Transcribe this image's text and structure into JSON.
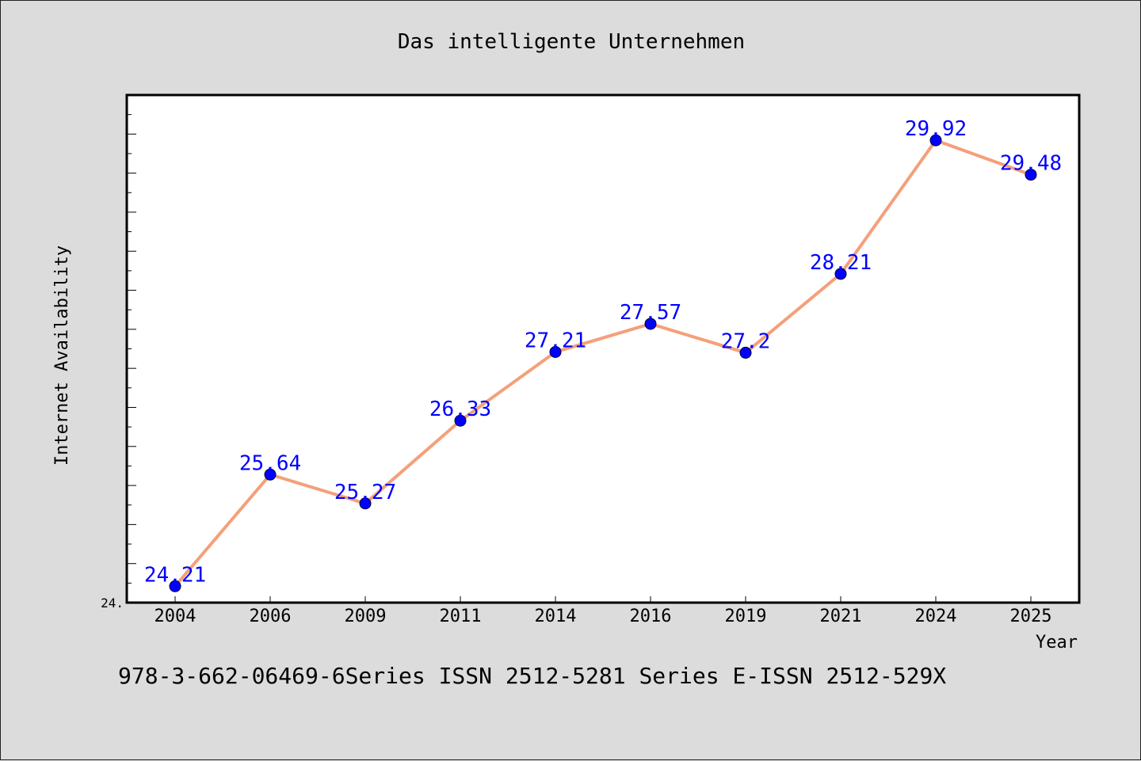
{
  "chart_data": {
    "type": "line",
    "title": "Das intelligente Unternehmen",
    "xlabel": "Year",
    "ylabel": "Internet Availability",
    "categories": [
      "2004",
      "2006",
      "2009",
      "2011",
      "2014",
      "2016",
      "2019",
      "2021",
      "2024",
      "2025"
    ],
    "series": [
      {
        "values": [
          24.21,
          25.64,
          25.27,
          26.33,
          27.21,
          27.57,
          27.2,
          28.21,
          29.92,
          29.48
        ],
        "data_labels": [
          "24.21",
          "25.64",
          "25.27",
          "26.33",
          "27.21",
          "27.57",
          "27.2",
          "28.21",
          "29.92",
          "29.48"
        ]
      }
    ],
    "ylim": [
      24.0,
      30.5
    ],
    "y_tick_label_shown": "24.",
    "grid": false,
    "line_color": "#f4a07a",
    "marker_color": "#0000ff",
    "label_color": "#0000ff"
  },
  "footer_text": "978-3-662-06469-6Series ISSN 2512-5281 Series E-ISSN 2512-529X"
}
